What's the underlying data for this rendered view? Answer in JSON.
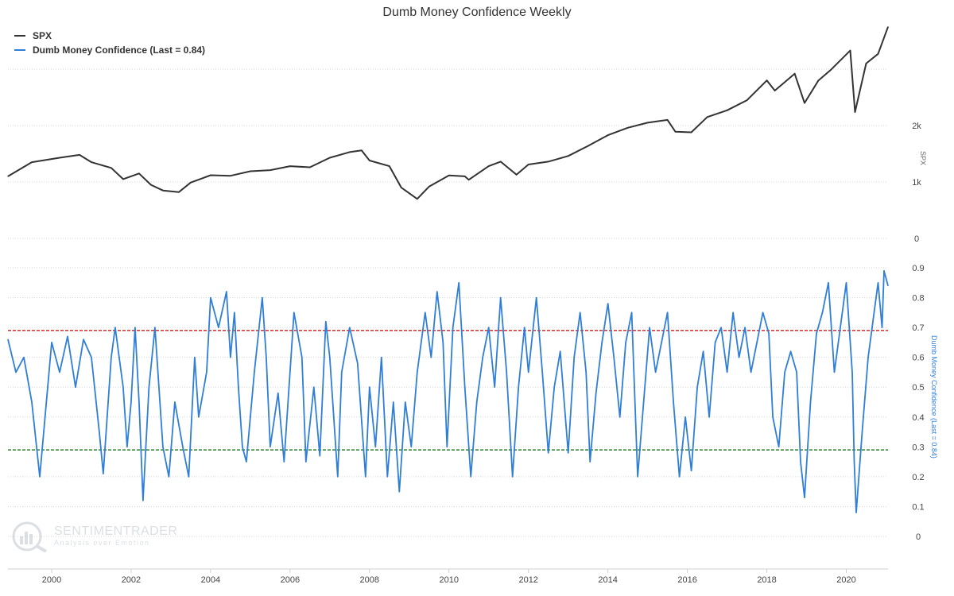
{
  "title": "Dumb Money Confidence Weekly",
  "legend": [
    {
      "label": "SPX",
      "color": "#333333"
    },
    {
      "label": "Dumb Money Confidence (Last = 0.84)",
      "color": "#2f7ed8"
    }
  ],
  "watermark": {
    "name": "SENTIMENTRADER",
    "tagline": "Analysis over Emotion"
  },
  "chart_data": {
    "type": "line",
    "title": "Dumb Money Confidence Weekly",
    "x_range": [
      1998.9,
      2021.05
    ],
    "x_ticks": [
      "2000",
      "2002",
      "2004",
      "2006",
      "2008",
      "2010",
      "2012",
      "2014",
      "2016",
      "2018",
      "2020"
    ],
    "grid": true,
    "legend_position": "top-left",
    "panels": [
      {
        "name": "SPX",
        "ylabel": "SPX",
        "axis_side": "right",
        "ylim": [
          0,
          3000
        ],
        "y_ticks": [
          {
            "value": 0,
            "label": "0"
          },
          {
            "value": 1000,
            "label": "1k"
          },
          {
            "value": 2000,
            "label": "2k"
          }
        ],
        "series": [
          {
            "name": "SPX",
            "color": "#333333",
            "points": [
              [
                1998.9,
                1100
              ],
              [
                1999.5,
                1350
              ],
              [
                2000.2,
                1430
              ],
              [
                2000.7,
                1480
              ],
              [
                2001.0,
                1350
              ],
              [
                2001.5,
                1250
              ],
              [
                2001.8,
                1050
              ],
              [
                2002.2,
                1150
              ],
              [
                2002.5,
                950
              ],
              [
                2002.8,
                850
              ],
              [
                2003.2,
                820
              ],
              [
                2003.5,
                990
              ],
              [
                2004.0,
                1120
              ],
              [
                2004.5,
                1110
              ],
              [
                2005.0,
                1190
              ],
              [
                2005.5,
                1210
              ],
              [
                2006.0,
                1280
              ],
              [
                2006.5,
                1260
              ],
              [
                2007.0,
                1430
              ],
              [
                2007.5,
                1530
              ],
              [
                2007.8,
                1560
              ],
              [
                2008.0,
                1380
              ],
              [
                2008.5,
                1280
              ],
              [
                2008.8,
                900
              ],
              [
                2009.2,
                700
              ],
              [
                2009.5,
                920
              ],
              [
                2010.0,
                1115
              ],
              [
                2010.4,
                1100
              ],
              [
                2010.5,
                1040
              ],
              [
                2011.0,
                1280
              ],
              [
                2011.3,
                1360
              ],
              [
                2011.7,
                1130
              ],
              [
                2012.0,
                1310
              ],
              [
                2012.5,
                1360
              ],
              [
                2013.0,
                1460
              ],
              [
                2013.5,
                1640
              ],
              [
                2014.0,
                1830
              ],
              [
                2014.5,
                1960
              ],
              [
                2015.0,
                2050
              ],
              [
                2015.5,
                2100
              ],
              [
                2015.7,
                1890
              ],
              [
                2016.1,
                1880
              ],
              [
                2016.5,
                2150
              ],
              [
                2017.0,
                2270
              ],
              [
                2017.5,
                2450
              ],
              [
                2018.0,
                2800
              ],
              [
                2018.2,
                2620
              ],
              [
                2018.7,
                2920
              ],
              [
                2018.95,
                2400
              ],
              [
                2019.3,
                2800
              ],
              [
                2019.6,
                2980
              ],
              [
                2020.1,
                3330
              ],
              [
                2020.22,
                2240
              ],
              [
                2020.5,
                3100
              ],
              [
                2020.8,
                3270
              ],
              [
                2021.05,
                3750
              ]
            ]
          }
        ]
      },
      {
        "name": "Dumb Money Confidence",
        "ylabel": "Dumb Money Confidence (Last = 0.84)",
        "axis_side": "right",
        "ylim": [
          0,
          0.9
        ],
        "y_ticks": [
          {
            "value": 0,
            "label": "0"
          },
          {
            "value": 0.1,
            "label": "0.1"
          },
          {
            "value": 0.2,
            "label": "0.2"
          },
          {
            "value": 0.3,
            "label": "0.3"
          },
          {
            "value": 0.4,
            "label": "0.4"
          },
          {
            "value": 0.5,
            "label": "0.5"
          },
          {
            "value": 0.6,
            "label": "0.6"
          },
          {
            "value": 0.7,
            "label": "0.7"
          },
          {
            "value": 0.8,
            "label": "0.8"
          },
          {
            "value": 0.9,
            "label": "0.9"
          }
        ],
        "reference_lines": [
          {
            "value": 0.69,
            "color": "#cc0000",
            "style": "dashed"
          },
          {
            "value": 0.29,
            "color": "#006600",
            "style": "dashed"
          }
        ],
        "series": [
          {
            "name": "Dumb Money Confidence (Last = 0.84)",
            "color": "#2f7ed8",
            "points": [
              [
                1998.9,
                0.66
              ],
              [
                1999.1,
                0.55
              ],
              [
                1999.3,
                0.6
              ],
              [
                1999.5,
                0.45
              ],
              [
                1999.7,
                0.2
              ],
              [
                1999.9,
                0.5
              ],
              [
                2000.0,
                0.65
              ],
              [
                2000.2,
                0.55
              ],
              [
                2000.4,
                0.67
              ],
              [
                2000.6,
                0.5
              ],
              [
                2000.8,
                0.66
              ],
              [
                2001.0,
                0.6
              ],
              [
                2001.2,
                0.35
              ],
              [
                2001.3,
                0.21
              ],
              [
                2001.5,
                0.6
              ],
              [
                2001.6,
                0.7
              ],
              [
                2001.8,
                0.5
              ],
              [
                2001.9,
                0.3
              ],
              [
                2002.0,
                0.45
              ],
              [
                2002.1,
                0.7
              ],
              [
                2002.2,
                0.45
              ],
              [
                2002.3,
                0.12
              ],
              [
                2002.45,
                0.5
              ],
              [
                2002.6,
                0.7
              ],
              [
                2002.7,
                0.5
              ],
              [
                2002.8,
                0.3
              ],
              [
                2002.95,
                0.2
              ],
              [
                2003.1,
                0.45
              ],
              [
                2003.3,
                0.3
              ],
              [
                2003.45,
                0.2
              ],
              [
                2003.6,
                0.6
              ],
              [
                2003.7,
                0.4
              ],
              [
                2003.9,
                0.55
              ],
              [
                2004.0,
                0.8
              ],
              [
                2004.2,
                0.7
              ],
              [
                2004.4,
                0.82
              ],
              [
                2004.5,
                0.6
              ],
              [
                2004.6,
                0.75
              ],
              [
                2004.7,
                0.5
              ],
              [
                2004.8,
                0.3
              ],
              [
                2004.9,
                0.25
              ],
              [
                2005.1,
                0.55
              ],
              [
                2005.3,
                0.8
              ],
              [
                2005.4,
                0.6
              ],
              [
                2005.5,
                0.3
              ],
              [
                2005.7,
                0.48
              ],
              [
                2005.85,
                0.25
              ],
              [
                2006.0,
                0.55
              ],
              [
                2006.1,
                0.75
              ],
              [
                2006.3,
                0.6
              ],
              [
                2006.4,
                0.25
              ],
              [
                2006.6,
                0.5
              ],
              [
                2006.75,
                0.27
              ],
              [
                2006.9,
                0.72
              ],
              [
                2007.0,
                0.6
              ],
              [
                2007.2,
                0.2
              ],
              [
                2007.3,
                0.55
              ],
              [
                2007.5,
                0.7
              ],
              [
                2007.7,
                0.58
              ],
              [
                2007.9,
                0.2
              ],
              [
                2008.0,
                0.5
              ],
              [
                2008.15,
                0.3
              ],
              [
                2008.3,
                0.6
              ],
              [
                2008.45,
                0.2
              ],
              [
                2008.6,
                0.45
              ],
              [
                2008.75,
                0.15
              ],
              [
                2008.9,
                0.45
              ],
              [
                2009.05,
                0.3
              ],
              [
                2009.2,
                0.55
              ],
              [
                2009.4,
                0.75
              ],
              [
                2009.55,
                0.6
              ],
              [
                2009.7,
                0.82
              ],
              [
                2009.85,
                0.65
              ],
              [
                2009.95,
                0.3
              ],
              [
                2010.1,
                0.7
              ],
              [
                2010.25,
                0.85
              ],
              [
                2010.4,
                0.5
              ],
              [
                2010.55,
                0.2
              ],
              [
                2010.7,
                0.45
              ],
              [
                2010.85,
                0.6
              ],
              [
                2011.0,
                0.7
              ],
              [
                2011.15,
                0.5
              ],
              [
                2011.3,
                0.8
              ],
              [
                2011.45,
                0.55
              ],
              [
                2011.6,
                0.2
              ],
              [
                2011.75,
                0.5
              ],
              [
                2011.9,
                0.7
              ],
              [
                2012.0,
                0.55
              ],
              [
                2012.2,
                0.8
              ],
              [
                2012.35,
                0.55
              ],
              [
                2012.5,
                0.28
              ],
              [
                2012.65,
                0.5
              ],
              [
                2012.8,
                0.62
              ],
              [
                2013.0,
                0.28
              ],
              [
                2013.15,
                0.6
              ],
              [
                2013.3,
                0.75
              ],
              [
                2013.45,
                0.55
              ],
              [
                2013.55,
                0.25
              ],
              [
                2013.7,
                0.48
              ],
              [
                2013.85,
                0.65
              ],
              [
                2014.0,
                0.78
              ],
              [
                2014.15,
                0.6
              ],
              [
                2014.3,
                0.4
              ],
              [
                2014.45,
                0.65
              ],
              [
                2014.6,
                0.75
              ],
              [
                2014.75,
                0.2
              ],
              [
                2014.9,
                0.45
              ],
              [
                2015.05,
                0.7
              ],
              [
                2015.2,
                0.55
              ],
              [
                2015.35,
                0.65
              ],
              [
                2015.5,
                0.75
              ],
              [
                2015.65,
                0.45
              ],
              [
                2015.8,
                0.2
              ],
              [
                2015.95,
                0.4
              ],
              [
                2016.1,
                0.22
              ],
              [
                2016.25,
                0.5
              ],
              [
                2016.4,
                0.62
              ],
              [
                2016.55,
                0.4
              ],
              [
                2016.7,
                0.65
              ],
              [
                2016.85,
                0.7
              ],
              [
                2017.0,
                0.55
              ],
              [
                2017.15,
                0.75
              ],
              [
                2017.3,
                0.6
              ],
              [
                2017.45,
                0.7
              ],
              [
                2017.6,
                0.55
              ],
              [
                2017.75,
                0.65
              ],
              [
                2017.9,
                0.75
              ],
              [
                2018.05,
                0.68
              ],
              [
                2018.15,
                0.4
              ],
              [
                2018.3,
                0.3
              ],
              [
                2018.45,
                0.55
              ],
              [
                2018.6,
                0.62
              ],
              [
                2018.75,
                0.55
              ],
              [
                2018.85,
                0.25
              ],
              [
                2018.95,
                0.13
              ],
              [
                2019.1,
                0.45
              ],
              [
                2019.25,
                0.68
              ],
              [
                2019.4,
                0.75
              ],
              [
                2019.55,
                0.85
              ],
              [
                2019.7,
                0.55
              ],
              [
                2019.85,
                0.7
              ],
              [
                2020.0,
                0.85
              ],
              [
                2020.15,
                0.55
              ],
              [
                2020.2,
                0.25
              ],
              [
                2020.25,
                0.08
              ],
              [
                2020.4,
                0.35
              ],
              [
                2020.55,
                0.6
              ],
              [
                2020.7,
                0.75
              ],
              [
                2020.8,
                0.85
              ],
              [
                2020.9,
                0.7
              ],
              [
                2020.95,
                0.89
              ],
              [
                2021.05,
                0.84
              ]
            ]
          }
        ]
      }
    ]
  }
}
